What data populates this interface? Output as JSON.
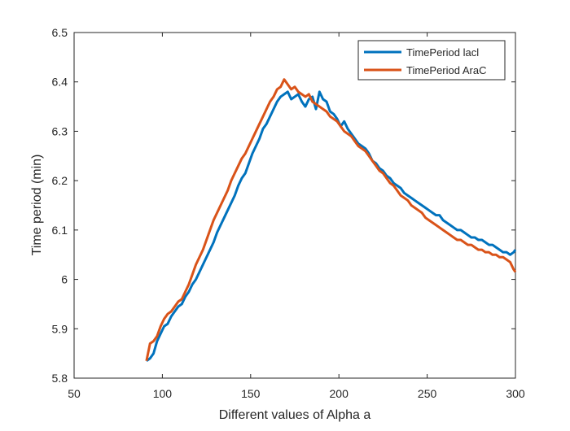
{
  "chart_data": {
    "type": "line",
    "title": "",
    "xlabel": "Different values of Alpha a",
    "ylabel": "Time period (min)",
    "xlim": [
      50,
      300
    ],
    "ylim": [
      5.8,
      6.5
    ],
    "xticks": [
      50,
      100,
      150,
      200,
      250,
      300
    ],
    "yticks": [
      5.8,
      5.9,
      6.0,
      6.1,
      6.2,
      6.3,
      6.4,
      6.5
    ],
    "xtick_labels": [
      "50",
      "100",
      "150",
      "200",
      "250",
      "300"
    ],
    "ytick_labels": [
      "5.8",
      "5.9",
      "6",
      "6.1",
      "6.2",
      "6.3",
      "6.4",
      "6.5"
    ],
    "grid": false,
    "legend_position": "top-right",
    "series": [
      {
        "name": "TimePeriod lacl",
        "color": "#0072BD",
        "x": [
          91,
          93,
          95,
          97,
          99,
          101,
          103,
          105,
          107,
          109,
          111,
          113,
          115,
          117,
          119,
          121,
          123,
          125,
          127,
          129,
          131,
          133,
          135,
          137,
          139,
          141,
          143,
          145,
          147,
          149,
          151,
          153,
          155,
          157,
          159,
          161,
          163,
          165,
          167,
          169,
          171,
          173,
          175,
          177,
          179,
          181,
          183,
          185,
          187,
          189,
          191,
          193,
          195,
          197,
          199,
          201,
          203,
          205,
          207,
          209,
          211,
          213,
          215,
          217,
          219,
          221,
          223,
          225,
          227,
          229,
          231,
          233,
          235,
          237,
          239,
          241,
          243,
          245,
          247,
          249,
          251,
          253,
          255,
          257,
          259,
          261,
          263,
          265,
          267,
          269,
          271,
          273,
          275,
          277,
          279,
          281,
          283,
          285,
          287,
          289,
          291,
          293,
          295,
          297,
          299,
          300
        ],
        "y": [
          5.835,
          5.84,
          5.85,
          5.875,
          5.89,
          5.905,
          5.91,
          5.925,
          5.935,
          5.945,
          5.95,
          5.965,
          5.975,
          5.99,
          6.0,
          6.015,
          6.03,
          6.045,
          6.06,
          6.075,
          6.095,
          6.11,
          6.125,
          6.14,
          6.155,
          6.17,
          6.19,
          6.205,
          6.215,
          6.235,
          6.255,
          6.27,
          6.285,
          6.305,
          6.315,
          6.33,
          6.345,
          6.36,
          6.37,
          6.375,
          6.38,
          6.365,
          6.37,
          6.375,
          6.36,
          6.35,
          6.365,
          6.37,
          6.345,
          6.38,
          6.365,
          6.36,
          6.34,
          6.335,
          6.325,
          6.31,
          6.32,
          6.305,
          6.295,
          6.285,
          6.275,
          6.27,
          6.265,
          6.255,
          6.24,
          6.235,
          6.225,
          6.22,
          6.21,
          6.205,
          6.195,
          6.19,
          6.185,
          6.175,
          6.17,
          6.165,
          6.16,
          6.155,
          6.15,
          6.145,
          6.14,
          6.135,
          6.13,
          6.13,
          6.12,
          6.115,
          6.11,
          6.105,
          6.1,
          6.1,
          6.095,
          6.09,
          6.085,
          6.085,
          6.08,
          6.08,
          6.075,
          6.07,
          6.07,
          6.065,
          6.06,
          6.055,
          6.055,
          6.05,
          6.055,
          6.06
        ]
      },
      {
        "name": "TimePeriod AraC",
        "color": "#D95319",
        "x": [
          91,
          93,
          95,
          97,
          99,
          101,
          103,
          105,
          107,
          109,
          111,
          113,
          115,
          117,
          119,
          121,
          123,
          125,
          127,
          129,
          131,
          133,
          135,
          137,
          139,
          141,
          143,
          145,
          147,
          149,
          151,
          153,
          155,
          157,
          159,
          161,
          163,
          165,
          167,
          169,
          171,
          173,
          175,
          177,
          179,
          181,
          183,
          185,
          187,
          189,
          191,
          193,
          195,
          197,
          199,
          201,
          203,
          205,
          207,
          209,
          211,
          213,
          215,
          217,
          219,
          221,
          223,
          225,
          227,
          229,
          231,
          233,
          235,
          237,
          239,
          241,
          243,
          245,
          247,
          249,
          251,
          253,
          255,
          257,
          259,
          261,
          263,
          265,
          267,
          269,
          271,
          273,
          275,
          277,
          279,
          281,
          283,
          285,
          287,
          289,
          291,
          293,
          295,
          297,
          299,
          300
        ],
        "y": [
          5.835,
          5.87,
          5.875,
          5.885,
          5.905,
          5.92,
          5.93,
          5.935,
          5.945,
          5.955,
          5.96,
          5.975,
          5.99,
          6.01,
          6.03,
          6.045,
          6.06,
          6.08,
          6.1,
          6.12,
          6.135,
          6.15,
          6.165,
          6.18,
          6.2,
          6.215,
          6.23,
          6.245,
          6.255,
          6.27,
          6.285,
          6.3,
          6.315,
          6.33,
          6.345,
          6.36,
          6.37,
          6.385,
          6.39,
          6.405,
          6.395,
          6.385,
          6.39,
          6.38,
          6.375,
          6.37,
          6.375,
          6.36,
          6.355,
          6.35,
          6.345,
          6.34,
          6.33,
          6.325,
          6.32,
          6.31,
          6.3,
          6.295,
          6.29,
          6.28,
          6.27,
          6.265,
          6.26,
          6.25,
          6.24,
          6.23,
          6.22,
          6.215,
          6.205,
          6.195,
          6.19,
          6.18,
          6.17,
          6.165,
          6.16,
          6.15,
          6.145,
          6.14,
          6.135,
          6.125,
          6.12,
          6.115,
          6.11,
          6.105,
          6.1,
          6.095,
          6.09,
          6.085,
          6.08,
          6.08,
          6.075,
          6.07,
          6.07,
          6.065,
          6.06,
          6.06,
          6.055,
          6.055,
          6.05,
          6.05,
          6.045,
          6.045,
          6.04,
          6.035,
          6.02,
          6.015
        ]
      }
    ]
  }
}
